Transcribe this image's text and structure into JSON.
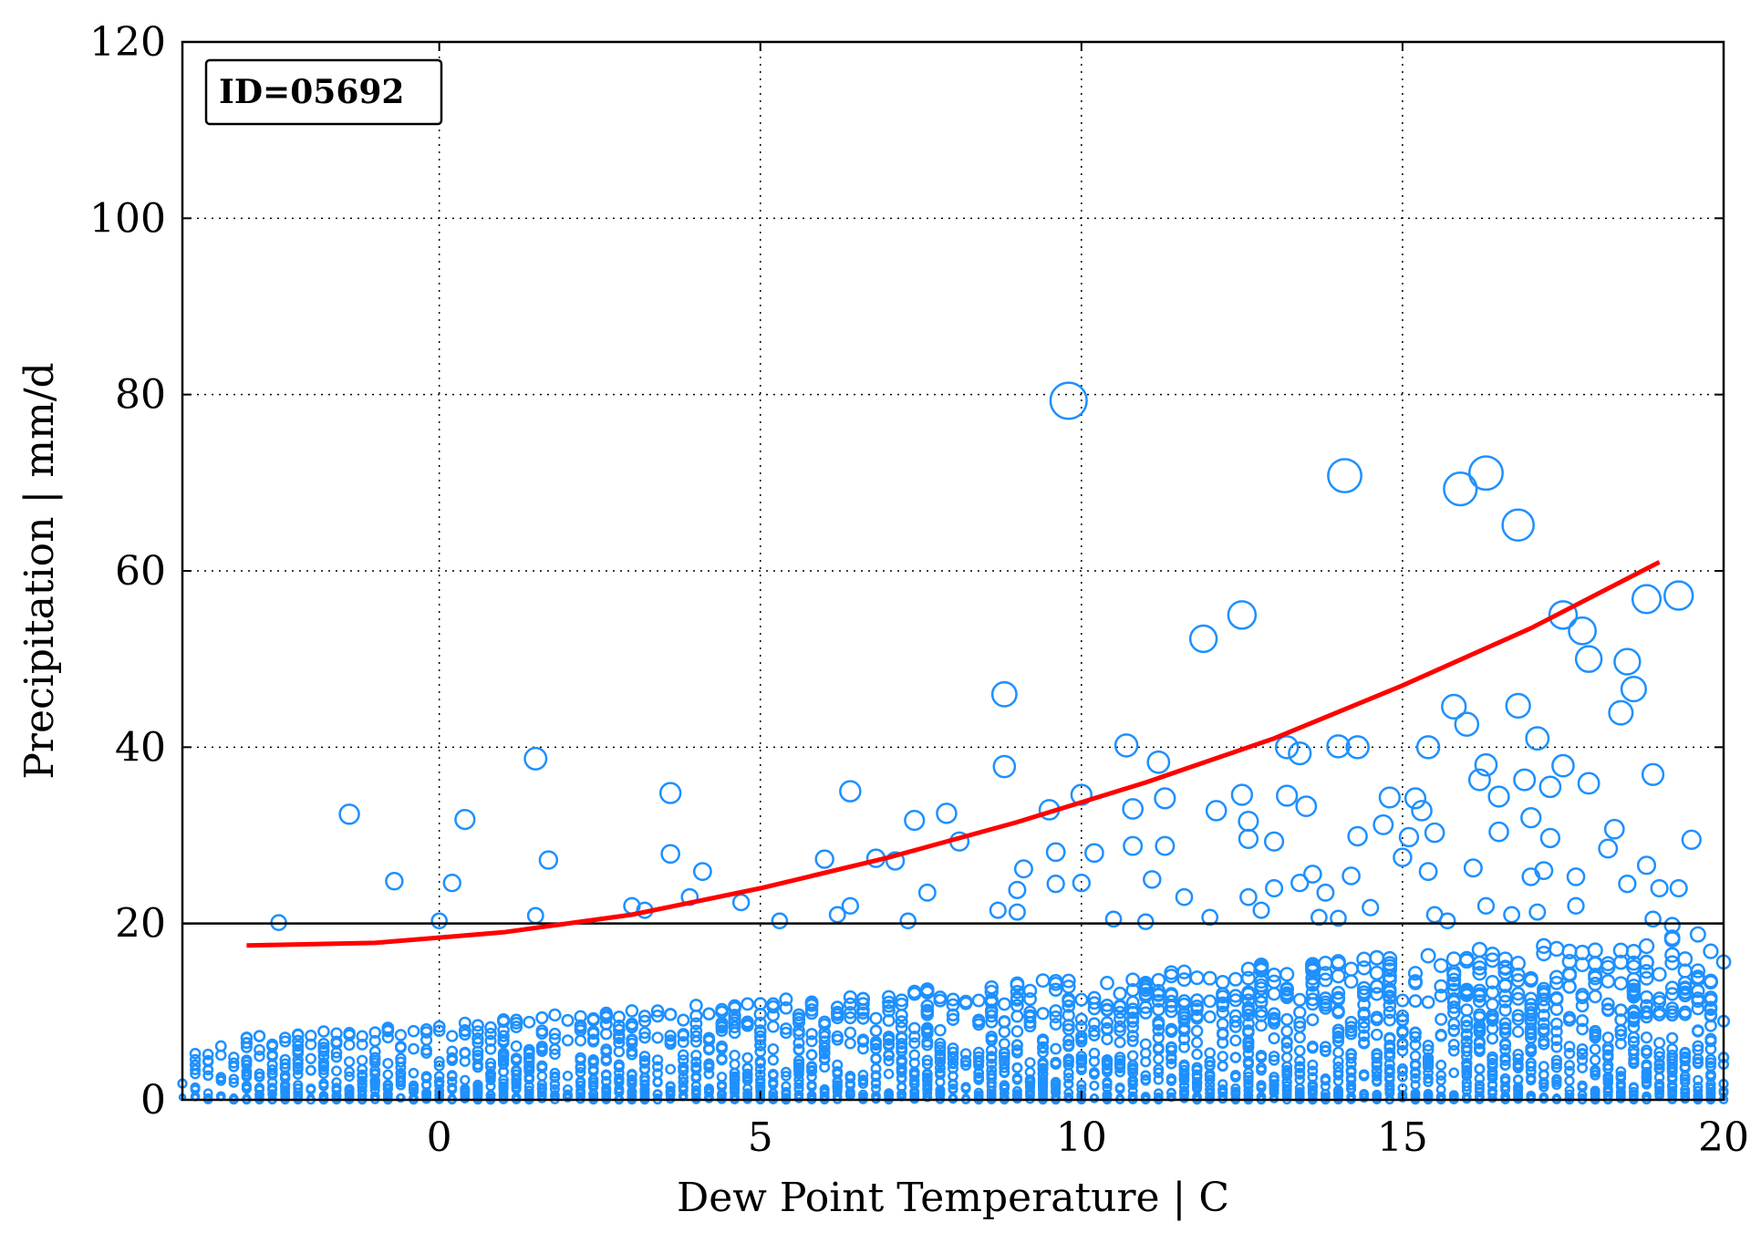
{
  "chart_data": {
    "type": "scatter",
    "xlabel": "Dew Point Temperature | C",
    "ylabel": "Precipitation | mm/d",
    "xlim": [
      -4,
      20
    ],
    "ylim": [
      0,
      120
    ],
    "x_ticks": [
      0,
      5,
      10,
      15,
      20
    ],
    "y_ticks": [
      0,
      20,
      40,
      60,
      80,
      100,
      120
    ],
    "grid": true,
    "annotation": "ID=05692",
    "threshold_line": {
      "y": 20,
      "color": "#000000"
    },
    "fit_curve": {
      "color": "#ff0000",
      "points": [
        {
          "x": -3,
          "y": 17.5
        },
        {
          "x": -1,
          "y": 17.8
        },
        {
          "x": 1,
          "y": 19.0
        },
        {
          "x": 3,
          "y": 21.0
        },
        {
          "x": 5,
          "y": 24.0
        },
        {
          "x": 7,
          "y": 27.5
        },
        {
          "x": 9,
          "y": 31.5
        },
        {
          "x": 11,
          "y": 36.0
        },
        {
          "x": 13,
          "y": 41.0
        },
        {
          "x": 15,
          "y": 47.0
        },
        {
          "x": 17,
          "y": 53.5
        },
        {
          "x": 19,
          "y": 61.0
        }
      ]
    },
    "marker_color": "#1e90ff",
    "highlighted_points": [
      {
        "x": 9.8,
        "y": 79.3
      },
      {
        "x": 14.1,
        "y": 70.8
      },
      {
        "x": 15.9,
        "y": 69.3
      },
      {
        "x": 16.3,
        "y": 71.1
      },
      {
        "x": 16.8,
        "y": 65.2
      },
      {
        "x": 19.3,
        "y": 57.2
      },
      {
        "x": 18.8,
        "y": 56.8
      },
      {
        "x": 17.5,
        "y": 55.0
      },
      {
        "x": 17.8,
        "y": 53.2
      },
      {
        "x": 12.5,
        "y": 55.0
      },
      {
        "x": 11.9,
        "y": 52.3
      },
      {
        "x": 18.5,
        "y": 49.7
      },
      {
        "x": 17.9,
        "y": 50.0
      },
      {
        "x": 18.6,
        "y": 46.6
      },
      {
        "x": 18.4,
        "y": 43.9
      },
      {
        "x": 15.8,
        "y": 44.6
      },
      {
        "x": 16.8,
        "y": 44.7
      },
      {
        "x": 16.0,
        "y": 42.6
      },
      {
        "x": 8.8,
        "y": 46.0
      },
      {
        "x": 8.8,
        "y": 37.8
      },
      {
        "x": 10.7,
        "y": 40.2
      },
      {
        "x": 13.2,
        "y": 40.0
      },
      {
        "x": 13.4,
        "y": 39.3
      },
      {
        "x": 14.0,
        "y": 40.1
      },
      {
        "x": 14.3,
        "y": 40.0
      },
      {
        "x": 15.4,
        "y": 40.0
      },
      {
        "x": 11.2,
        "y": 38.3
      },
      {
        "x": 1.5,
        "y": 38.7
      },
      {
        "x": 16.3,
        "y": 38.0
      },
      {
        "x": 17.1,
        "y": 41.0
      },
      {
        "x": 3.6,
        "y": 34.8
      },
      {
        "x": 6.4,
        "y": 35.0
      },
      {
        "x": 10.0,
        "y": 34.6
      },
      {
        "x": 12.5,
        "y": 34.6
      },
      {
        "x": 13.2,
        "y": 34.5
      },
      {
        "x": 11.3,
        "y": 34.2
      },
      {
        "x": 14.8,
        "y": 34.3
      },
      {
        "x": 15.2,
        "y": 34.2
      },
      {
        "x": -1.4,
        "y": 32.4
      },
      {
        "x": 0.4,
        "y": 31.8
      },
      {
        "x": 7.4,
        "y": 31.7
      },
      {
        "x": 7.9,
        "y": 32.5
      },
      {
        "x": 9.5,
        "y": 32.9
      },
      {
        "x": 10.8,
        "y": 33.0
      },
      {
        "x": 12.1,
        "y": 32.8
      },
      {
        "x": 12.6,
        "y": 31.6
      },
      {
        "x": 13.5,
        "y": 33.3
      },
      {
        "x": 14.7,
        "y": 31.2
      },
      {
        "x": 15.3,
        "y": 32.8
      },
      {
        "x": 16.5,
        "y": 34.4
      },
      {
        "x": 16.9,
        "y": 36.3
      },
      {
        "x": 17.5,
        "y": 37.9
      },
      {
        "x": 17.9,
        "y": 35.9
      },
      {
        "x": 18.9,
        "y": 36.9
      },
      {
        "x": 16.2,
        "y": 36.3
      },
      {
        "x": 17.3,
        "y": 35.5
      },
      {
        "x": 9.6,
        "y": 28.1
      },
      {
        "x": 3.6,
        "y": 27.9
      },
      {
        "x": 1.7,
        "y": 27.2
      },
      {
        "x": 6.0,
        "y": 27.3
      },
      {
        "x": 6.8,
        "y": 27.4
      },
      {
        "x": 7.1,
        "y": 27.1
      },
      {
        "x": 8.1,
        "y": 29.3
      },
      {
        "x": 10.2,
        "y": 28.0
      },
      {
        "x": 10.8,
        "y": 28.8
      },
      {
        "x": 11.3,
        "y": 28.8
      },
      {
        "x": 12.6,
        "y": 29.6
      },
      {
        "x": 13.0,
        "y": 29.3
      },
      {
        "x": 14.3,
        "y": 29.9
      },
      {
        "x": 15.1,
        "y": 29.8
      },
      {
        "x": 15.5,
        "y": 30.3
      },
      {
        "x": 16.5,
        "y": 30.4
      },
      {
        "x": 17.0,
        "y": 32.0
      },
      {
        "x": 17.3,
        "y": 29.7
      },
      {
        "x": 18.3,
        "y": 30.7
      },
      {
        "x": 18.2,
        "y": 28.5
      },
      {
        "x": 19.5,
        "y": 29.5
      },
      {
        "x": 4.1,
        "y": 25.9
      },
      {
        "x": -0.7,
        "y": 24.8
      },
      {
        "x": 0.2,
        "y": 24.6
      },
      {
        "x": 9.1,
        "y": 26.2
      },
      {
        "x": 9.6,
        "y": 24.5
      },
      {
        "x": 10.0,
        "y": 24.6
      },
      {
        "x": 11.1,
        "y": 25.0
      },
      {
        "x": 13.4,
        "y": 24.6
      },
      {
        "x": 13.6,
        "y": 25.6
      },
      {
        "x": 14.2,
        "y": 25.4
      },
      {
        "x": 15.0,
        "y": 27.5
      },
      {
        "x": 16.1,
        "y": 26.3
      },
      {
        "x": 17.0,
        "y": 25.3
      },
      {
        "x": 17.2,
        "y": 26.0
      },
      {
        "x": 17.7,
        "y": 25.3
      },
      {
        "x": 18.8,
        "y": 26.6
      },
      {
        "x": 15.4,
        "y": 25.9
      },
      {
        "x": 3.9,
        "y": 23.0
      },
      {
        "x": 4.7,
        "y": 22.4
      },
      {
        "x": 6.4,
        "y": 22.0
      },
      {
        "x": 7.6,
        "y": 23.5
      },
      {
        "x": 9.0,
        "y": 23.8
      },
      {
        "x": 11.6,
        "y": 23.0
      },
      {
        "x": 12.6,
        "y": 23.0
      },
      {
        "x": 13.0,
        "y": 24.0
      },
      {
        "x": 13.8,
        "y": 23.5
      },
      {
        "x": 14.5,
        "y": 21.8
      },
      {
        "x": 15.5,
        "y": 21.0
      },
      {
        "x": 16.3,
        "y": 22.0
      },
      {
        "x": 17.7,
        "y": 22.0
      },
      {
        "x": 18.5,
        "y": 24.5
      },
      {
        "x": 19.3,
        "y": 24.0
      },
      {
        "x": 19.0,
        "y": 24.0
      },
      {
        "x": 3.0,
        "y": 22.0
      },
      {
        "x": 3.2,
        "y": 21.5
      },
      {
        "x": -2.5,
        "y": 20.1
      },
      {
        "x": 0.0,
        "y": 20.3
      },
      {
        "x": 1.5,
        "y": 20.9
      },
      {
        "x": 5.3,
        "y": 20.3
      },
      {
        "x": 6.2,
        "y": 21.0
      },
      {
        "x": 7.3,
        "y": 20.3
      },
      {
        "x": 8.7,
        "y": 21.5
      },
      {
        "x": 9.0,
        "y": 21.3
      },
      {
        "x": 10.5,
        "y": 20.5
      },
      {
        "x": 11.0,
        "y": 20.2
      },
      {
        "x": 12.0,
        "y": 20.7
      },
      {
        "x": 12.8,
        "y": 21.5
      },
      {
        "x": 13.7,
        "y": 20.7
      },
      {
        "x": 14.0,
        "y": 20.6
      },
      {
        "x": 15.7,
        "y": 20.3
      },
      {
        "x": 16.7,
        "y": 21.0
      },
      {
        "x": 17.1,
        "y": 21.3
      },
      {
        "x": 18.9,
        "y": 20.5
      },
      {
        "x": 19.2,
        "y": 19.8
      }
    ],
    "low_cloud": {
      "x_range": [
        -4,
        20
      ],
      "y_range": [
        0,
        20
      ],
      "density_peak_x": 12
    }
  }
}
